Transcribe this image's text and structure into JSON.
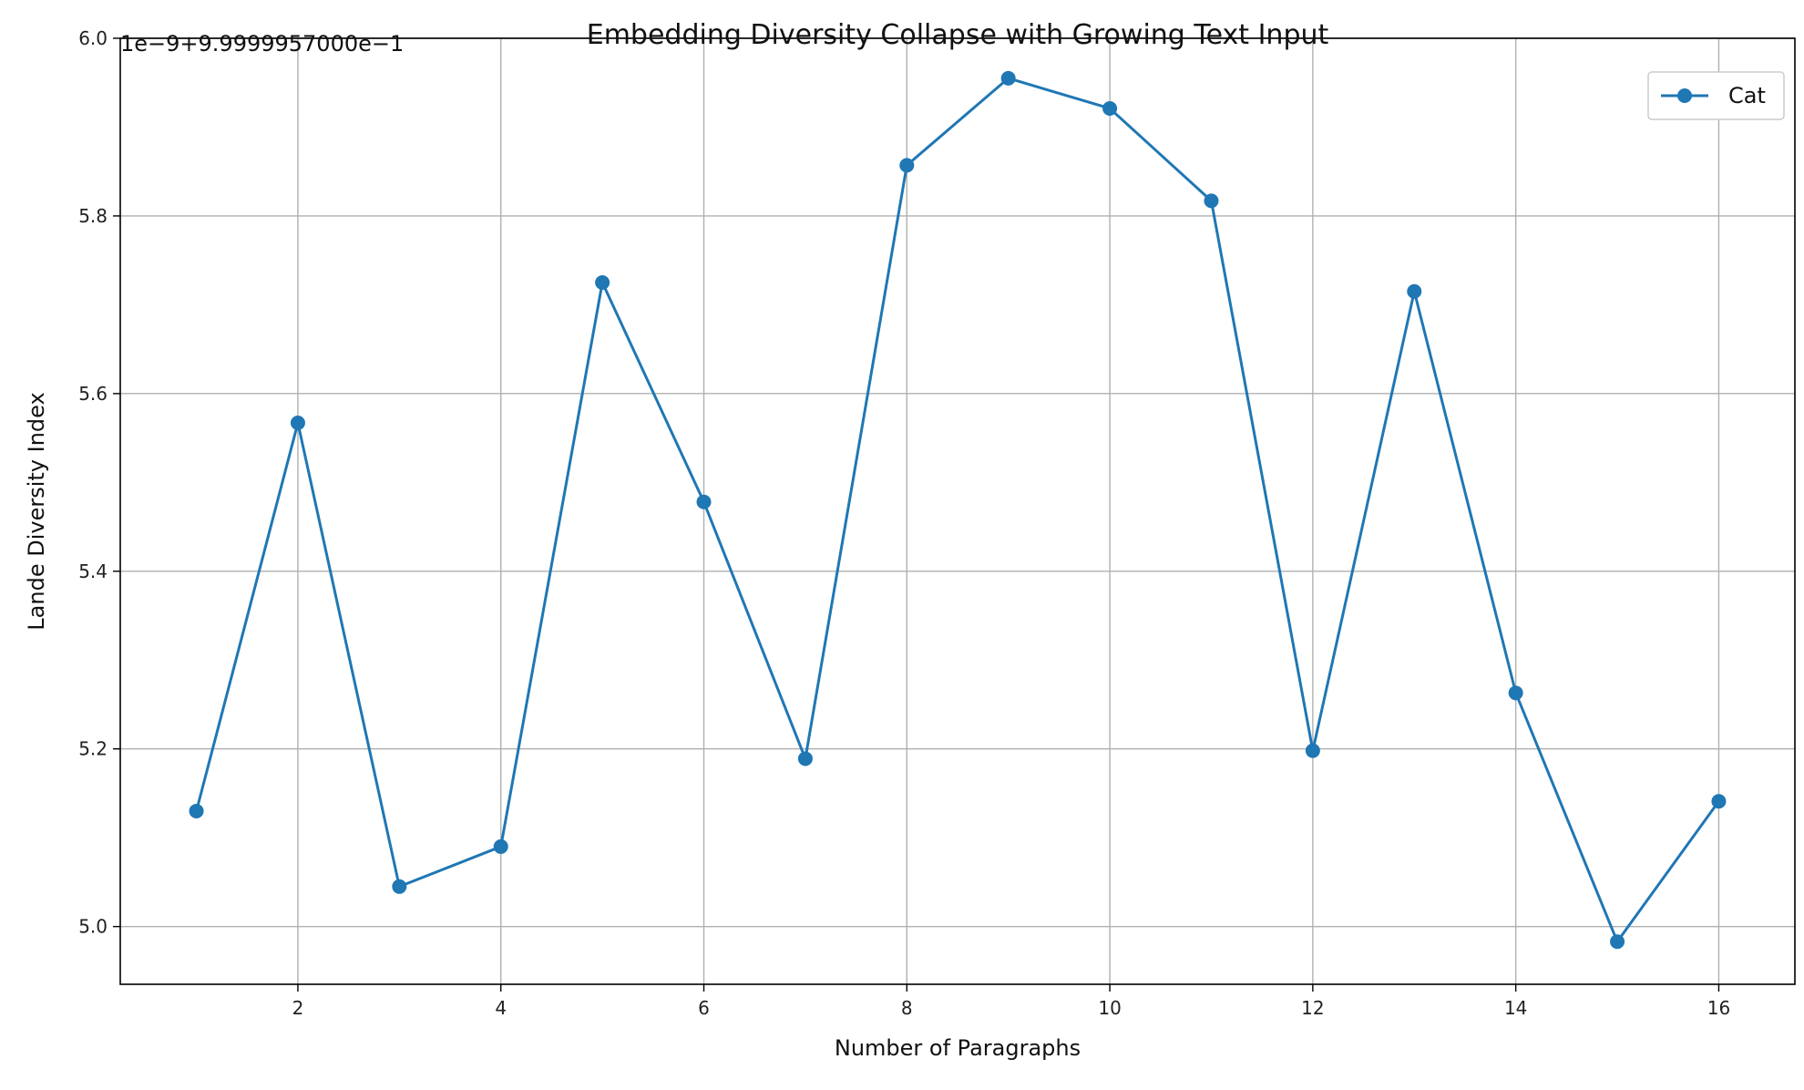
{
  "chart_data": {
    "type": "line",
    "title": "Embedding Diversity Collapse with Growing Text Input",
    "xlabel": "Number of Paragraphs",
    "ylabel": "Lande Diversity Index",
    "y_offset_text": "1e−9+9.9999957000e−1",
    "xlim": [
      0.25,
      16.75
    ],
    "ylim": [
      4.935,
      6.0
    ],
    "x_ticks": [
      2,
      4,
      6,
      8,
      10,
      12,
      14,
      16
    ],
    "y_ticks": [
      5.0,
      5.2,
      5.4,
      5.6,
      5.8,
      6.0
    ],
    "grid": true,
    "legend_position": "top-right",
    "series": [
      {
        "name": "Cat",
        "color": "#1f77b4",
        "marker": "circle",
        "x": [
          1,
          2,
          3,
          4,
          5,
          6,
          7,
          8,
          9,
          10,
          11,
          12,
          13,
          14,
          15,
          16
        ],
        "y": [
          5.13,
          5.567,
          5.045,
          5.09,
          5.725,
          5.478,
          5.189,
          5.857,
          5.955,
          5.921,
          5.817,
          5.198,
          5.715,
          5.263,
          4.983,
          5.141
        ]
      }
    ]
  }
}
